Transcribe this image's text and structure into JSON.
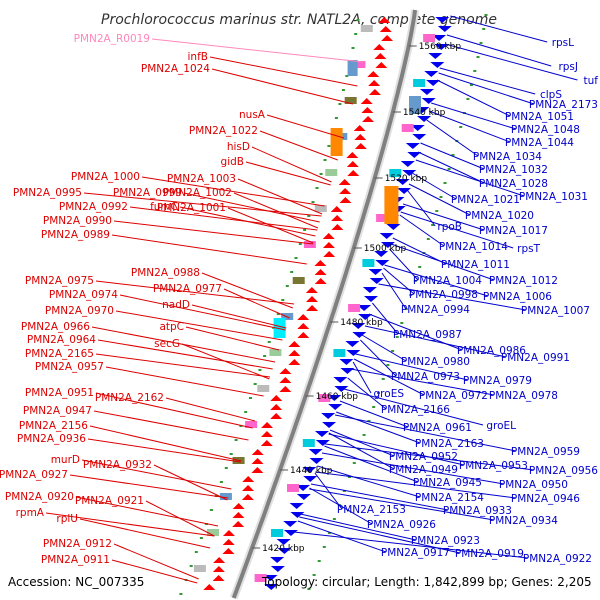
{
  "title": "Prochlorococcus marinus str. NATL2A, complete genome",
  "accession": "Accession: NC_007335",
  "summary": "Topology: circular; Length: 1,842,899 bp; Genes: 2,205",
  "colors": {
    "left_label": "#dd0000",
    "right_label": "#0000cc",
    "rna_label": "#ff88bb",
    "backbone": "#808080",
    "forward_arrow": "#ff0000",
    "reverse_arrow": "#0000ee",
    "orf_tick": "#339933"
  },
  "kbp_ticks": [
    "1560 kbp",
    "1540 kbp",
    "1520 kbp",
    "1500 kbp",
    "1480 kbp",
    "1460 kbp",
    "1440 kbp",
    "1420 kbp"
  ],
  "left_labels": [
    "PMN2A_R0019",
    "infB",
    "PMN2A_1024",
    "nusA",
    "PMN2A_1022",
    "hisD",
    "gidB",
    "PMN2A_1000",
    "PMN2A_1003",
    "PMN2A_0995",
    "PMN2A_0999",
    "PMN2A_1002",
    "PMN2A_0992",
    "fumC",
    "PMN2A_1001",
    "PMN2A_0990",
    "PMN2A_0989",
    "PMN2A_0988",
    "PMN2A_0975",
    "PMN2A_0977",
    "PMN2A_0974",
    "nadD",
    "PMN2A_0970",
    "PMN2A_0966",
    "atpC",
    "PMN2A_0964",
    "secG",
    "PMN2A_2165",
    "PMN2A_0957",
    "PMN2A_0951",
    "PMN2A_2162",
    "PMN2A_0947",
    "PMN2A_2156",
    "PMN2A_0936",
    "murD",
    "PMN2A_0932",
    "PMN2A_0927",
    "PMN2A_0920",
    "PMN2A_0921",
    "rpmA",
    "rplU",
    "PMN2A_0912",
    "PMN2A_0911"
  ],
  "right_labels": [
    "rpsL",
    "rpsJ",
    "tuf",
    "clpS",
    "PMN2A_2173",
    "PMN2A_1051",
    "PMN2A_1048",
    "PMN2A_1044",
    "PMN2A_1034",
    "PMN2A_1032",
    "PMN2A_1028",
    "PMN2A_1031",
    "PMN2A_1021",
    "PMN2A_1020",
    "rpoB",
    "PMN2A_1017",
    "PMN2A_1014",
    "rpsT",
    "PMN2A_1011",
    "PMN2A_1004",
    "PMN2A_1012",
    "PMN2A_0998",
    "PMN2A_1006",
    "PMN2A_0994",
    "PMN2A_1007",
    "PMN2A_0987",
    "PMN2A_0986",
    "PMN2A_0980",
    "PMN2A_0991",
    "PMN2A_0973",
    "PMN2A_0979",
    "groES",
    "PMN2A_0972",
    "PMN2A_0978",
    "PMN2A_2166",
    "groEL",
    "PMN2A_0961",
    "PMN2A_2163",
    "PMN2A_0959",
    "PMN2A_0952",
    "PMN2A_0953",
    "PMN2A_0949",
    "PMN2A_0956",
    "PMN2A_0950",
    "PMN2A_0945",
    "PMN2A_0946",
    "PMN2A_2154",
    "PMN2A_2153",
    "PMN2A_0933",
    "PMN2A_0934",
    "PMN2A_0926",
    "PMN2A_0923",
    "PMN2A_0917",
    "PMN2A_0919",
    "PMN2A_0922"
  ]
}
